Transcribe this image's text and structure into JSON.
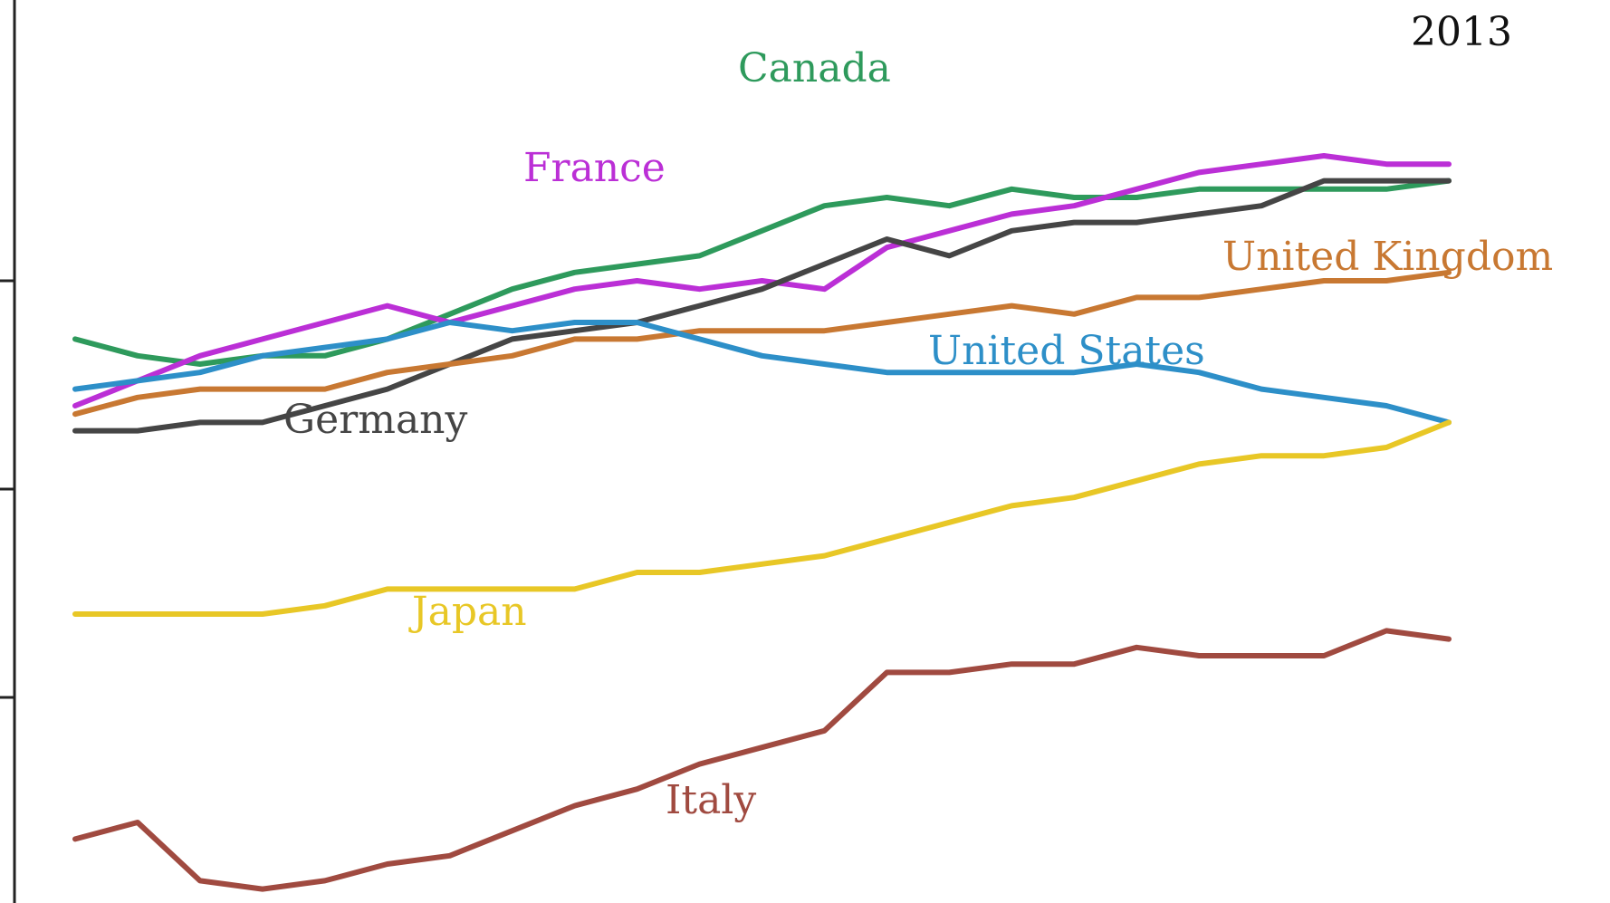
{
  "chart_data": {
    "type": "line",
    "x": [
      1,
      2,
      3,
      4,
      5,
      6,
      7,
      8,
      9,
      10,
      11,
      12,
      13,
      14,
      15,
      16,
      17,
      18,
      19,
      20,
      21,
      22,
      23
    ],
    "x_end_label": "2013",
    "xlim": [
      1,
      23
    ],
    "ylim": [
      0,
      100
    ],
    "grid": false,
    "series": [
      {
        "name": "Canada",
        "color": "#2e9a5c",
        "values": [
          68,
          66,
          65,
          66,
          66,
          68,
          71,
          74,
          76,
          77,
          78,
          81,
          84,
          85,
          84,
          86,
          85,
          85,
          86,
          86,
          86,
          86,
          87
        ]
      },
      {
        "name": "France",
        "color": "#bb2fd6",
        "values": [
          60,
          63,
          66,
          68,
          70,
          72,
          70,
          72,
          74,
          75,
          74,
          75,
          74,
          79,
          81,
          83,
          84,
          86,
          88,
          89,
          90,
          89,
          89
        ]
      },
      {
        "name": "Germany",
        "color": "#454545",
        "values": [
          57,
          57,
          58,
          58,
          60,
          62,
          65,
          68,
          69,
          70,
          72,
          74,
          77,
          80,
          78,
          81,
          82,
          82,
          83,
          84,
          87,
          87,
          87
        ]
      },
      {
        "name": "United Kingdom",
        "color": "#c87832",
        "values": [
          59,
          61,
          62,
          62,
          62,
          64,
          65,
          66,
          68,
          68,
          69,
          69,
          69,
          70,
          71,
          72,
          71,
          73,
          73,
          74,
          75,
          75,
          76
        ]
      },
      {
        "name": "United States",
        "color": "#2d8fc8",
        "values": [
          62,
          63,
          64,
          66,
          67,
          68,
          70,
          69,
          70,
          70,
          68,
          66,
          65,
          64,
          64,
          64,
          64,
          65,
          64,
          62,
          61,
          60,
          58
        ]
      },
      {
        "name": "Japan",
        "color": "#e8c726",
        "values": [
          35,
          35,
          35,
          35,
          36,
          38,
          38,
          38,
          38,
          40,
          40,
          41,
          42,
          44,
          46,
          48,
          49,
          51,
          53,
          54,
          54,
          55,
          58
        ]
      },
      {
        "name": "Italy",
        "color": "#a04a40",
        "values": [
          8,
          10,
          3,
          2,
          3,
          5,
          6,
          9,
          12,
          14,
          17,
          19,
          21,
          28,
          28,
          29,
          29,
          31,
          30,
          30,
          30,
          33,
          32
        ]
      }
    ],
    "annotations": [
      {
        "text": "Canada",
        "series": "Canada"
      },
      {
        "text": "France",
        "series": "France"
      },
      {
        "text": "Germany",
        "series": "Germany"
      },
      {
        "text": "United Kingdom",
        "series": "United Kingdom"
      },
      {
        "text": "United States",
        "series": "United States"
      },
      {
        "text": "Japan",
        "series": "Japan"
      },
      {
        "text": "Italy",
        "series": "Italy"
      }
    ]
  }
}
